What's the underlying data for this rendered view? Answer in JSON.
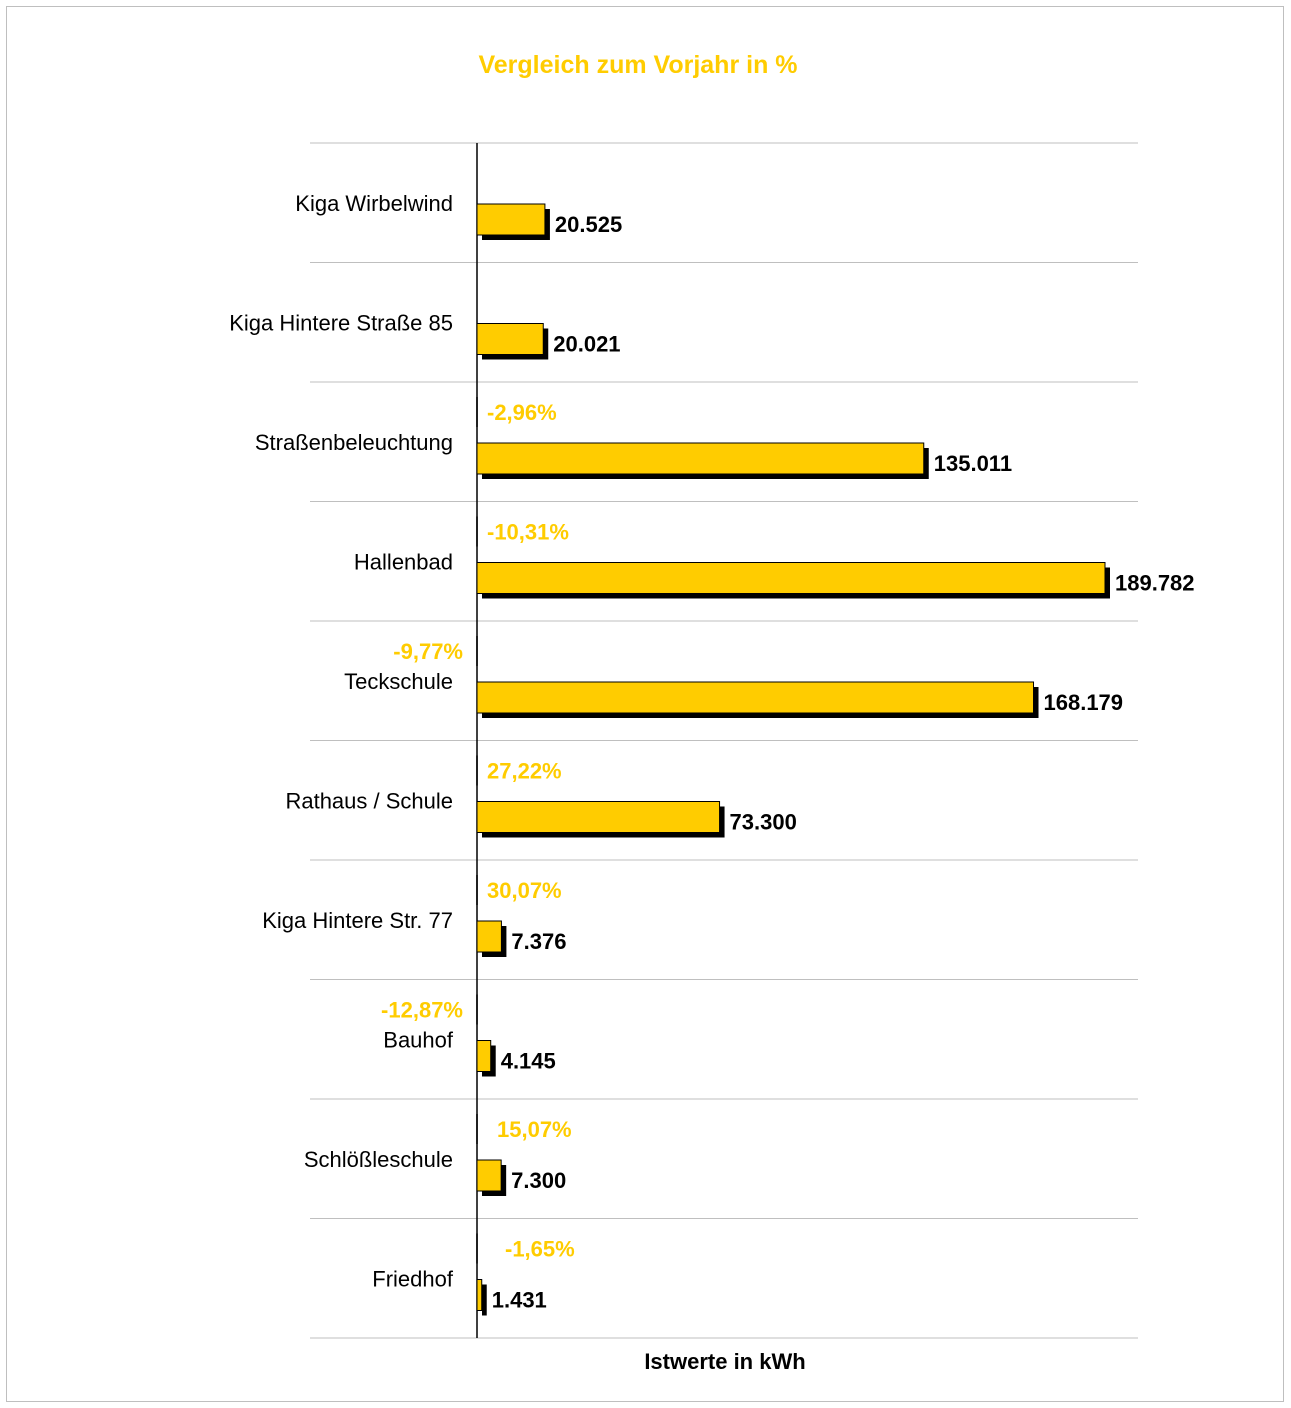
{
  "chart_data": {
    "type": "bar",
    "orientation": "horizontal",
    "title": "Vergleich zum Vorjahr in %",
    "xlabel": "Istwerte in kWh",
    "categories": [
      "Kiga Wirbelwind",
      "Kiga Hintere Straße 85",
      "Straßenbeleuchtung",
      "Hallenbad",
      "Teckschule",
      "Rathaus / Schule",
      "Kiga Hintere Str. 77",
      "Bauhof",
      "Schlößleschule",
      "Friedhof"
    ],
    "series": [
      {
        "values": [
          20525,
          20021,
          135011,
          189782,
          168179,
          73300,
          7376,
          4145,
          7300,
          1431
        ],
        "value_labels": [
          "20.525",
          "20.021",
          "135.011",
          "189.782",
          "168.179",
          "73.300",
          "7.376",
          "4.145",
          "7.300",
          "1.431"
        ]
      },
      {
        "values": [
          null,
          null,
          -2.96,
          -10.31,
          -9.77,
          27.22,
          30.07,
          -12.87,
          15.07,
          -1.65
        ],
        "value_labels": [
          "",
          "",
          "-2,96%",
          "-10,31%",
          "-9,77%",
          "27,22%",
          "30,07%",
          "-12,87%",
          "15,07%",
          "-1,65%"
        ]
      }
    ],
    "xlim": [
      0,
      200000
    ],
    "grid": true,
    "colors": {
      "bar": "#ffcc00",
      "shadow": "#000000",
      "title": "#ffcc00",
      "pct": "#ffcc00",
      "gridline": "#bfbfbf"
    }
  }
}
